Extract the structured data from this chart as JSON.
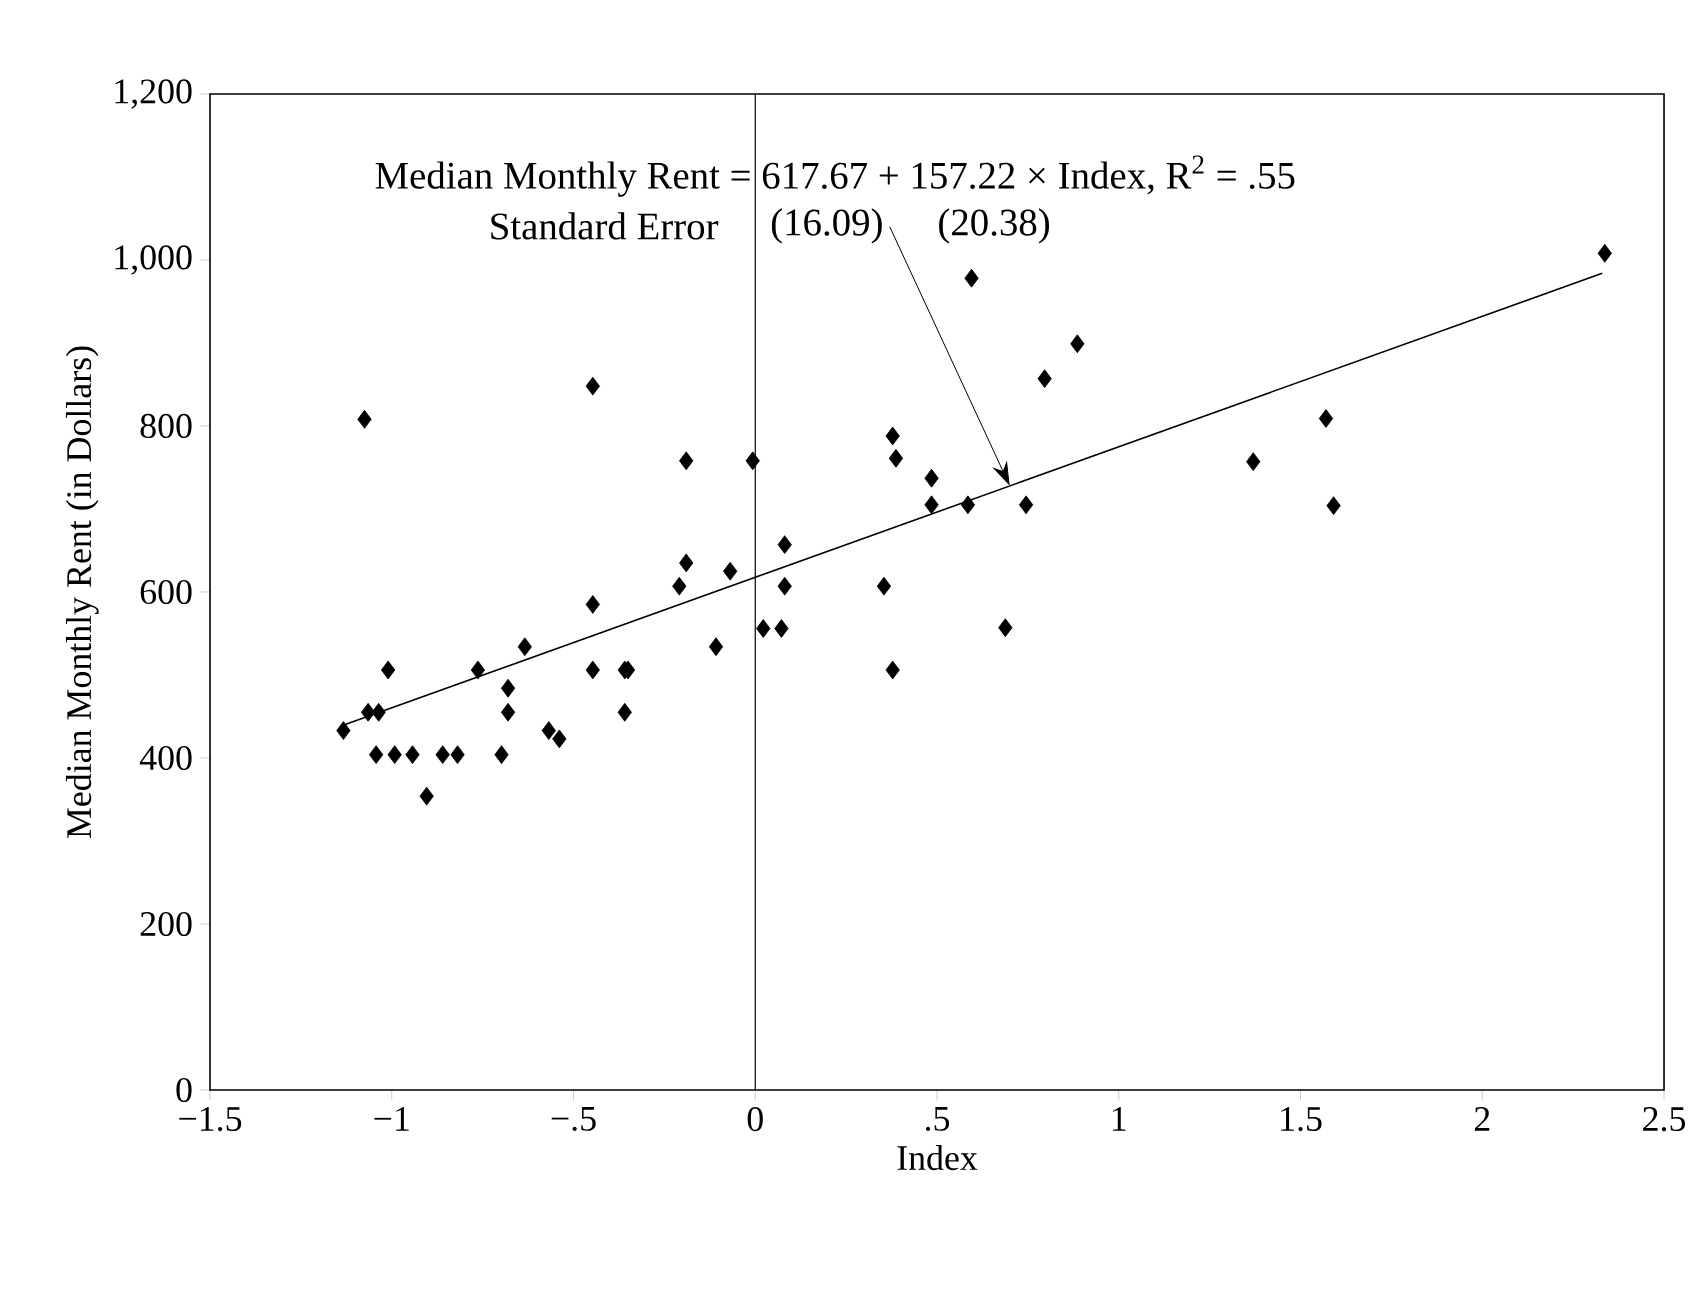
{
  "chart_data": {
    "type": "scatter",
    "xlabel": "Index",
    "ylabel": "Median Monthly Rent (in Dollars)",
    "xlim": [
      -1.5,
      2.5
    ],
    "ylim": [
      0,
      1200
    ],
    "xticks": [
      {
        "value": -1.5,
        "label": "−1.5"
      },
      {
        "value": -1,
        "label": "−1"
      },
      {
        "value": -0.5,
        "label": "−.5"
      },
      0,
      {
        "value": 0.5,
        "label": ".5"
      },
      1,
      1.5,
      2,
      2.5
    ],
    "yticks": [
      0,
      200,
      400,
      600,
      800,
      {
        "value": 1000,
        "label": "1,000"
      },
      {
        "value": 1200,
        "label": "1,200"
      }
    ],
    "grid": false,
    "marker": "diamond",
    "ref_lines": [
      {
        "axis": "x",
        "value": 0,
        "color": "#000000"
      }
    ],
    "annotations": [
      {
        "text": "Median Monthly Rent = 617.67 + 157.22 × Index, R$^{2}$ = .55",
        "x": 0.7,
        "y": 728
      },
      "Standard Error",
      "(16.09)",
      "(20.38)"
    ],
    "series": [
      {
        "color": "#000000",
        "x": [
          -1.133,
          -1.065,
          -1.036,
          -1.01,
          -1.043,
          -0.992,
          -0.943,
          -0.904,
          -0.86,
          -0.819,
          -0.763,
          -0.698,
          -0.68,
          -0.68,
          -0.634,
          -0.568,
          -0.539,
          -0.447,
          -0.447,
          -0.359,
          -0.35,
          -0.359,
          -0.209,
          -0.19,
          -0.108,
          -0.069,
          0.022,
          0.072,
          0.081,
          -1.075,
          -0.447,
          -0.19,
          -0.007,
          0.081,
          0.378,
          0.387,
          0.485,
          0.485,
          0.585,
          0.745,
          0.354,
          0.378,
          0.688,
          0.796,
          0.886,
          0.595,
          2.337,
          1.57,
          1.37,
          1.591
        ],
        "values": [
          433,
          455,
          455,
          506,
          404,
          404,
          404,
          354,
          404,
          404,
          506,
          404,
          455,
          484,
          534,
          433,
          423,
          506,
          585,
          506,
          506,
          455,
          607,
          635,
          534,
          625,
          556,
          556,
          607,
          808,
          848,
          758,
          758,
          657,
          788,
          761,
          737,
          705,
          705,
          705,
          607,
          506,
          557,
          857,
          899,
          978,
          1008,
          809,
          757,
          704
        ]
      },
      {
        "type": "line",
        "color": "#000000",
        "marker": "none",
        "x": [
          -1.13,
          2.33
        ],
        "values": [
          440,
          984
        ]
      }
    ]
  }
}
